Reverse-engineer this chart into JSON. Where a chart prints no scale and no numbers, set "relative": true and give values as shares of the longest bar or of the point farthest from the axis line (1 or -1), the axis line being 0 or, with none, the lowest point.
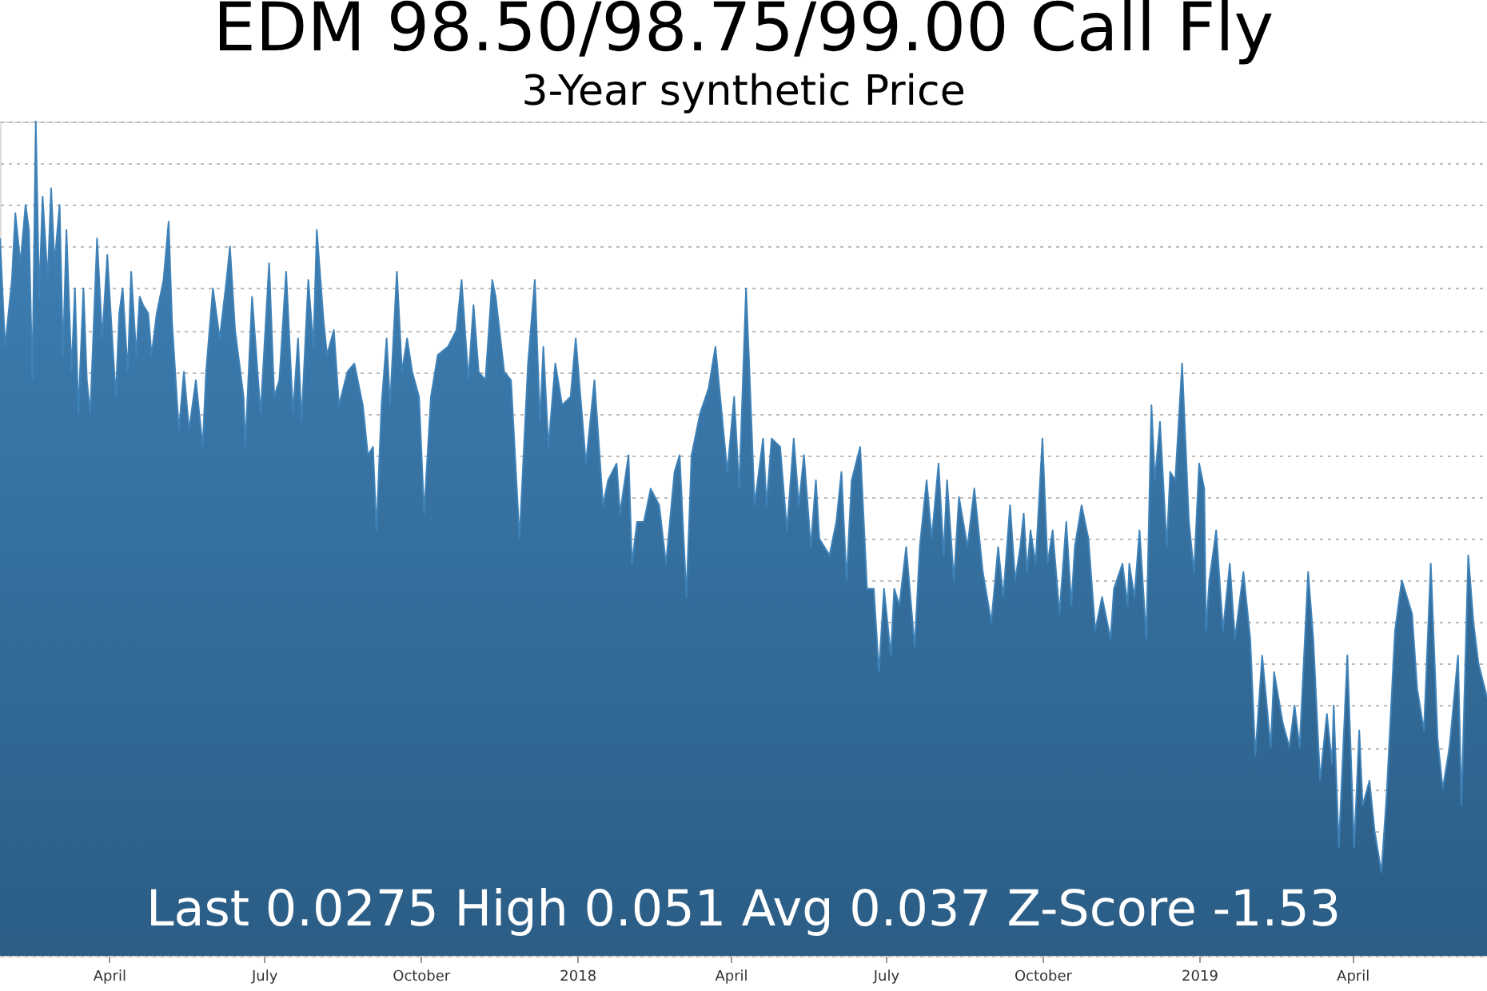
{
  "chart_data": {
    "type": "area",
    "title": "EDM 98.50/98.75/99.00 Call Fly",
    "subtitle": "3-Year synthetic Price",
    "relative": true,
    "grid": "y",
    "annotations": [
      "Last 0.0275 High 0.051 Avg 0.037 Z-Score -1.53"
    ],
    "xlim": [
      "2017-01-27",
      "2019-06-19"
    ],
    "xticks": [
      {
        "value": "2017-04-01",
        "label": "April"
      },
      {
        "value": "2017-07-01",
        "label": "July"
      },
      {
        "value": "2017-10-01",
        "label": "October"
      },
      {
        "value": "2018-01-01",
        "label": "2018"
      },
      {
        "value": "2018-04-01",
        "label": "April"
      },
      {
        "value": "2018-07-01",
        "label": "July"
      },
      {
        "value": "2018-10-01",
        "label": "October"
      },
      {
        "value": "2019-01-01",
        "label": "2019"
      },
      {
        "value": "2019-04-01",
        "label": "April"
      }
    ],
    "x": [
      "2017-01-27",
      "2017-01-30",
      "2017-02-03",
      "2017-02-05",
      "2017-02-08",
      "2017-02-11",
      "2017-02-13",
      "2017-02-15",
      "2017-02-17",
      "2017-02-19",
      "2017-02-21",
      "2017-02-24",
      "2017-02-26",
      "2017-02-28",
      "2017-03-03",
      "2017-03-05",
      "2017-03-07",
      "2017-03-10",
      "2017-03-12",
      "2017-03-14",
      "2017-03-17",
      "2017-03-19",
      "2017-03-21",
      "2017-03-25",
      "2017-03-28",
      "2017-03-31",
      "2017-04-02",
      "2017-04-05",
      "2017-04-07",
      "2017-04-09",
      "2017-04-12",
      "2017-04-14",
      "2017-04-17",
      "2017-04-19",
      "2017-04-21",
      "2017-04-24",
      "2017-04-26",
      "2017-04-29",
      "2017-05-03",
      "2017-05-06",
      "2017-05-08",
      "2017-05-12",
      "2017-05-15",
      "2017-05-18",
      "2017-05-22",
      "2017-05-26",
      "2017-05-28",
      "2017-06-01",
      "2017-06-05",
      "2017-06-09",
      "2017-06-11",
      "2017-06-14",
      "2017-06-19",
      "2017-06-20",
      "2017-06-24",
      "2017-06-29",
      "2017-07-04",
      "2017-07-07",
      "2017-07-10",
      "2017-07-14",
      "2017-07-18",
      "2017-07-21",
      "2017-07-23",
      "2017-07-27",
      "2017-07-30",
      "2017-08-01",
      "2017-08-05",
      "2017-08-07",
      "2017-08-11",
      "2017-08-14",
      "2017-08-19",
      "2017-08-23",
      "2017-08-28",
      "2017-08-31",
      "2017-09-03",
      "2017-09-05",
      "2017-09-08",
      "2017-09-11",
      "2017-09-13",
      "2017-09-17",
      "2017-09-20",
      "2017-09-23",
      "2017-09-26",
      "2017-09-30",
      "2017-10-03",
      "2017-10-07",
      "2017-10-11",
      "2017-10-17",
      "2017-10-22",
      "2017-10-25",
      "2017-10-29",
      "2017-11-01",
      "2017-11-04",
      "2017-11-08",
      "2017-11-12",
      "2017-11-14",
      "2017-11-19",
      "2017-11-23",
      "2017-11-28",
      "2017-12-03",
      "2017-12-07",
      "2017-12-10",
      "2017-12-12",
      "2017-12-15",
      "2017-12-19",
      "2017-12-23",
      "2017-12-28",
      "2017-12-31",
      "2018-01-06",
      "2018-01-11",
      "2018-01-16",
      "2018-01-19",
      "2018-01-24",
      "2018-01-26",
      "2018-01-31",
      "2018-02-02",
      "2018-02-05",
      "2018-02-09",
      "2018-02-13",
      "2018-02-18",
      "2018-02-22",
      "2018-02-27",
      "2018-03-02",
      "2018-03-06",
      "2018-03-09",
      "2018-03-14",
      "2018-03-19",
      "2018-03-23",
      "2018-03-30",
      "2018-04-03",
      "2018-04-06",
      "2018-04-10",
      "2018-04-12",
      "2018-04-15",
      "2018-04-20",
      "2018-04-22",
      "2018-04-25",
      "2018-04-30",
      "2018-05-04",
      "2018-05-08",
      "2018-05-11",
      "2018-05-14",
      "2018-05-18",
      "2018-05-21",
      "2018-05-23",
      "2018-05-29",
      "2018-06-02",
      "2018-06-05",
      "2018-06-08",
      "2018-06-11",
      "2018-06-16",
      "2018-06-20",
      "2018-06-24",
      "2018-06-27",
      "2018-06-30",
      "2018-07-04",
      "2018-07-06",
      "2018-07-09",
      "2018-07-13",
      "2018-07-18",
      "2018-07-21",
      "2018-07-25",
      "2018-07-28",
      "2018-08-01",
      "2018-08-04",
      "2018-08-06",
      "2018-08-10",
      "2018-08-13",
      "2018-08-18",
      "2018-08-22",
      "2018-08-27",
      "2018-09-01",
      "2018-09-05",
      "2018-09-08",
      "2018-09-12",
      "2018-09-15",
      "2018-09-18",
      "2018-09-20",
      "2018-09-22",
      "2018-09-24",
      "2018-09-27",
      "2018-10-01",
      "2018-10-04",
      "2018-10-07",
      "2018-10-11",
      "2018-10-15",
      "2018-10-18",
      "2018-10-20",
      "2018-10-24",
      "2018-10-28",
      "2018-11-01",
      "2018-11-05",
      "2018-11-10",
      "2018-11-12",
      "2018-11-17",
      "2018-11-20",
      "2018-11-21",
      "2018-11-24",
      "2018-11-27",
      "2018-12-01",
      "2018-12-04",
      "2018-12-06",
      "2018-12-09",
      "2018-12-13",
      "2018-12-15",
      "2018-12-18",
      "2018-12-22",
      "2018-12-26",
      "2018-12-29",
      "2019-01-01",
      "2019-01-04",
      "2019-01-05",
      "2019-01-07",
      "2019-01-11",
      "2019-01-15",
      "2019-01-19",
      "2019-01-22",
      "2019-01-27",
      "2019-01-31",
      "2019-02-03",
      "2019-02-07",
      "2019-02-12",
      "2019-02-14",
      "2019-02-19",
      "2019-02-23",
      "2019-02-26",
      "2019-03-01",
      "2019-03-06",
      "2019-03-09",
      "2019-03-13",
      "2019-03-17",
      "2019-03-20",
      "2019-03-21",
      "2019-03-24",
      "2019-03-29",
      "2019-04-02",
      "2019-04-05",
      "2019-04-07",
      "2019-04-11",
      "2019-04-14",
      "2019-04-18",
      "2019-04-21",
      "2019-04-26",
      "2019-04-30",
      "2019-05-03",
      "2019-05-06",
      "2019-05-09",
      "2019-05-13",
      "2019-05-17",
      "2019-05-21",
      "2019-05-24",
      "2019-05-28",
      "2019-06-02",
      "2019-06-04",
      "2019-06-08",
      "2019-06-11",
      "2019-06-14",
      "2019-06-19"
    ],
    "series": [
      {
        "color": "#3f82b8",
        "values": [
          0.86,
          0.73,
          0.81,
          0.89,
          0.83,
          0.9,
          0.87,
          0.69,
          1.0,
          0.79,
          0.91,
          0.81,
          0.92,
          0.83,
          0.9,
          0.72,
          0.87,
          0.7,
          0.8,
          0.65,
          0.8,
          0.69,
          0.65,
          0.86,
          0.74,
          0.84,
          0.77,
          0.67,
          0.77,
          0.8,
          0.7,
          0.82,
          0.72,
          0.79,
          0.78,
          0.77,
          0.72,
          0.77,
          0.81,
          0.88,
          0.76,
          0.63,
          0.7,
          0.63,
          0.69,
          0.61,
          0.7,
          0.8,
          0.74,
          0.81,
          0.85,
          0.75,
          0.67,
          0.61,
          0.79,
          0.65,
          0.83,
          0.67,
          0.69,
          0.82,
          0.65,
          0.74,
          0.64,
          0.81,
          0.73,
          0.87,
          0.76,
          0.72,
          0.75,
          0.66,
          0.7,
          0.71,
          0.66,
          0.6,
          0.61,
          0.51,
          0.66,
          0.74,
          0.66,
          0.82,
          0.7,
          0.74,
          0.7,
          0.67,
          0.53,
          0.67,
          0.72,
          0.73,
          0.75,
          0.81,
          0.69,
          0.78,
          0.7,
          0.69,
          0.81,
          0.79,
          0.7,
          0.69,
          0.5,
          0.71,
          0.81,
          0.64,
          0.73,
          0.61,
          0.71,
          0.66,
          0.67,
          0.74,
          0.59,
          0.69,
          0.54,
          0.57,
          0.59,
          0.53,
          0.6,
          0.47,
          0.52,
          0.52,
          0.56,
          0.54,
          0.47,
          0.58,
          0.6,
          0.43,
          0.6,
          0.65,
          0.68,
          0.73,
          0.58,
          0.67,
          0.56,
          0.8,
          0.7,
          0.54,
          0.62,
          0.54,
          0.62,
          0.61,
          0.51,
          0.62,
          0.54,
          0.6,
          0.49,
          0.57,
          0.5,
          0.48,
          0.52,
          0.58,
          0.45,
          0.57,
          0.61,
          0.44,
          0.44,
          0.34,
          0.44,
          0.36,
          0.44,
          0.42,
          0.49,
          0.37,
          0.49,
          0.57,
          0.5,
          0.59,
          0.48,
          0.57,
          0.45,
          0.55,
          0.49,
          0.56,
          0.46,
          0.4,
          0.49,
          0.43,
          0.54,
          0.45,
          0.49,
          0.53,
          0.46,
          0.51,
          0.47,
          0.62,
          0.47,
          0.51,
          0.41,
          0.52,
          0.42,
          0.49,
          0.54,
          0.5,
          0.39,
          0.43,
          0.38,
          0.44,
          0.47,
          0.42,
          0.47,
          0.43,
          0.51,
          0.38,
          0.66,
          0.57,
          0.64,
          0.49,
          0.58,
          0.57,
          0.71,
          0.52,
          0.46,
          0.59,
          0.56,
          0.39,
          0.45,
          0.51,
          0.39,
          0.47,
          0.38,
          0.46,
          0.38,
          0.24,
          0.36,
          0.25,
          0.34,
          0.28,
          0.25,
          0.3,
          0.25,
          0.46,
          0.38,
          0.21,
          0.29,
          0.23,
          0.3,
          0.13,
          0.36,
          0.13,
          0.27,
          0.18,
          0.21,
          0.15,
          0.1,
          0.19,
          0.39,
          0.45,
          0.43,
          0.41,
          0.32,
          0.27,
          0.47,
          0.26,
          0.2,
          0.25,
          0.36,
          0.18,
          0.48,
          0.4,
          0.35,
          0.31
        ]
      }
    ]
  }
}
